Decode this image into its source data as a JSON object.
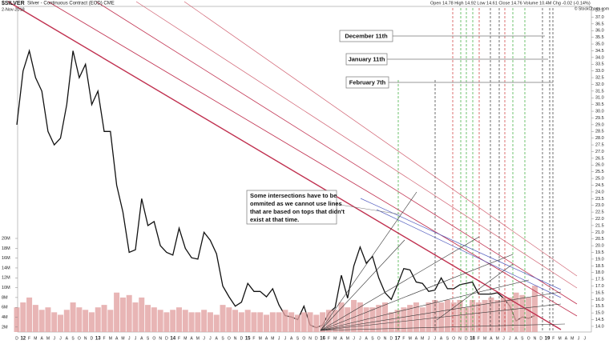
{
  "chart_data": {
    "type": "stock",
    "symbol": "$SILVER",
    "description": "Silver - Continuous Contract (EOD) CME",
    "date": "2-Nov-2018",
    "quote": "Open 14.78  High 14.92  Low 14.61  Close 14.76  Volume 10.4M  Chg -0.02 (-0.14%)",
    "credit": "© StockCharts.com",
    "annotations": [
      "December 11th",
      "January 11th",
      "February 7th"
    ],
    "note": [
      "Some intersections have to be",
      "ommited as we cannot use lines",
      "that are based on tops that didn't",
      "exist at that time."
    ],
    "categories": [
      "D",
      "12",
      "F",
      "M",
      "A",
      "M",
      "J",
      "J",
      "A",
      "S",
      "O",
      "N",
      "D",
      "13",
      "F",
      "M",
      "A",
      "M",
      "J",
      "J",
      "A",
      "S",
      "O",
      "N",
      "D",
      "14",
      "F",
      "M",
      "A",
      "M",
      "J",
      "J",
      "A",
      "S",
      "O",
      "N",
      "D",
      "15",
      "F",
      "M",
      "A",
      "M",
      "J",
      "J",
      "A",
      "S",
      "O",
      "N",
      "D",
      "16",
      "F",
      "M",
      "A",
      "M",
      "J",
      "J",
      "A",
      "S",
      "O",
      "N",
      "D",
      "17",
      "F",
      "M",
      "A",
      "M",
      "J",
      "J",
      "A",
      "S",
      "O",
      "N",
      "D",
      "18",
      "F",
      "M",
      "A",
      "M",
      "J",
      "J",
      "A",
      "S",
      "O",
      "N",
      "D",
      "19",
      "F",
      "M",
      "A",
      "M",
      "J",
      "J"
    ],
    "series": [
      {
        "color": "#111111",
        "values": [
          29,
          33,
          34.5,
          32.5,
          31.5,
          28.5,
          27.5,
          28,
          30.5,
          34.5,
          32.5,
          33.5,
          30.5,
          31.5,
          28.5,
          28.5,
          24.5,
          22.5,
          19.5,
          19.7,
          23.5,
          21.5,
          21.8,
          20,
          19.5,
          19.3,
          21.3,
          19.8,
          19.1,
          19,
          21,
          20.4,
          19.4,
          17,
          16.2,
          15.5,
          15.8,
          17.2,
          16.6,
          16.6,
          16.2,
          16.8,
          15.6,
          14.8,
          14.7,
          14.5,
          15.5,
          14.1,
          13.9,
          14.1,
          15,
          15.4,
          17.8,
          16.1,
          18.5,
          19.9,
          18.7,
          19.2,
          17.6,
          16.5,
          16,
          17.1,
          18.3,
          18.2,
          17.3,
          17.2,
          16.6,
          16.7,
          17.6,
          16.8,
          16.8,
          17.1,
          17.2,
          17.3,
          16.4,
          16.4,
          16.4,
          16.5,
          16.1,
          15.5,
          14.4,
          14.7,
          14.6,
          14.8,
          null,
          null,
          null,
          null,
          null,
          null,
          null,
          null
        ]
      },
      {
        "color": "#e2a3a3",
        "axis": "y2",
        "values": [
          6000000.0,
          7000000.0,
          8000000.0,
          6500000.0,
          5500000.0,
          6000000.0,
          5000000.0,
          4500000.0,
          5500000.0,
          7000000.0,
          6000000.0,
          5500000.0,
          5000000.0,
          6000000.0,
          6500000.0,
          5500000.0,
          9000000.0,
          8000000.0,
          8500000.0,
          7000000.0,
          8000000.0,
          6500000.0,
          6000000.0,
          5500000.0,
          5000000.0,
          5500000.0,
          6000000.0,
          5500000.0,
          5000000.0,
          5000000.0,
          5500000.0,
          5000000.0,
          4500000.0,
          6500000.0,
          6000000.0,
          5500000.0,
          5000000.0,
          5500000.0,
          5000000.0,
          5000000.0,
          4500000.0,
          5000000.0,
          5000000.0,
          5500000.0,
          5000000.0,
          4500000.0,
          5000000.0,
          5000000.0,
          4500000.0,
          5000000.0,
          5500000.0,
          5500000.0,
          7000000.0,
          6000000.0,
          7500000.0,
          7000000.0,
          6000000.0,
          6000000.0,
          6500000.0,
          7000000.0,
          5000000.0,
          5500000.0,
          6000000.0,
          6500000.0,
          7000000.0,
          6000000.0,
          7000000.0,
          7500000.0,
          7000000.0,
          7500000.0,
          7000000.0,
          7500000.0,
          6000000.0,
          7500000.0,
          7000000.0,
          7500000.0,
          8000000.0,
          7500000.0,
          8000000.0,
          8000000.0,
          9000000.0,
          8500000.0,
          8000000.0,
          10400000.0,
          null,
          null,
          null,
          null,
          null,
          null,
          null,
          null
        ]
      }
    ],
    "ylim": [
      13.58,
      37.8
    ],
    "yticks": [
      {
        "value": 14,
        "label": "14.0"
      },
      14.5,
      {
        "value": 15,
        "label": "15.0"
      },
      15.5,
      {
        "value": 16,
        "label": "16.0"
      },
      16.5,
      {
        "value": 17,
        "label": "17.0"
      },
      17.5,
      {
        "value": 18,
        "label": "18.0"
      },
      18.5,
      {
        "value": 19,
        "label": "19.0"
      },
      19.5,
      {
        "value": 20,
        "label": "20.0"
      },
      20.5,
      {
        "value": 21,
        "label": "21.0"
      },
      21.5,
      {
        "value": 22,
        "label": "22.0"
      },
      22.5,
      {
        "value": 23,
        "label": "23.0"
      },
      23.5,
      {
        "value": 24,
        "label": "24.0"
      },
      24.5,
      {
        "value": 25,
        "label": "25.0"
      },
      25.5,
      {
        "value": 26,
        "label": "26.0"
      },
      26.5,
      {
        "value": 27,
        "label": "27.0"
      },
      27.5,
      {
        "value": 28,
        "label": "28.0"
      },
      28.5,
      {
        "value": 29,
        "label": "29.0"
      },
      29.5,
      {
        "value": 30,
        "label": "30.0"
      },
      30.5,
      {
        "value": 31,
        "label": "31.0"
      },
      31.5,
      {
        "value": 32,
        "label": "32.0"
      },
      32.5,
      {
        "value": 33,
        "label": "33.0"
      },
      33.5,
      {
        "value": 34,
        "label": "34.0"
      },
      34.5,
      {
        "value": 35,
        "label": "35.0"
      },
      35.5,
      {
        "value": 36,
        "label": "36.0"
      },
      36.5,
      {
        "value": 37,
        "label": "37.0"
      },
      37.5
    ],
    "y2lim": [
      1000000,
      20000000
    ],
    "y2ticks": [
      {
        "value": 2000000,
        "label": "2M"
      },
      {
        "value": 4000000,
        "label": "4M"
      },
      {
        "value": 6000000,
        "label": "6M"
      },
      {
        "value": 8000000,
        "label": "8M"
      },
      {
        "value": 10000000,
        "label": "10M"
      },
      {
        "value": 12000000,
        "label": "12M"
      },
      {
        "value": 14000000,
        "label": "14M"
      },
      {
        "value": 16000000,
        "label": "16M"
      },
      {
        "value": 18000000,
        "label": "18M"
      },
      {
        "value": 20000000,
        "label": "20M"
      }
    ]
  }
}
